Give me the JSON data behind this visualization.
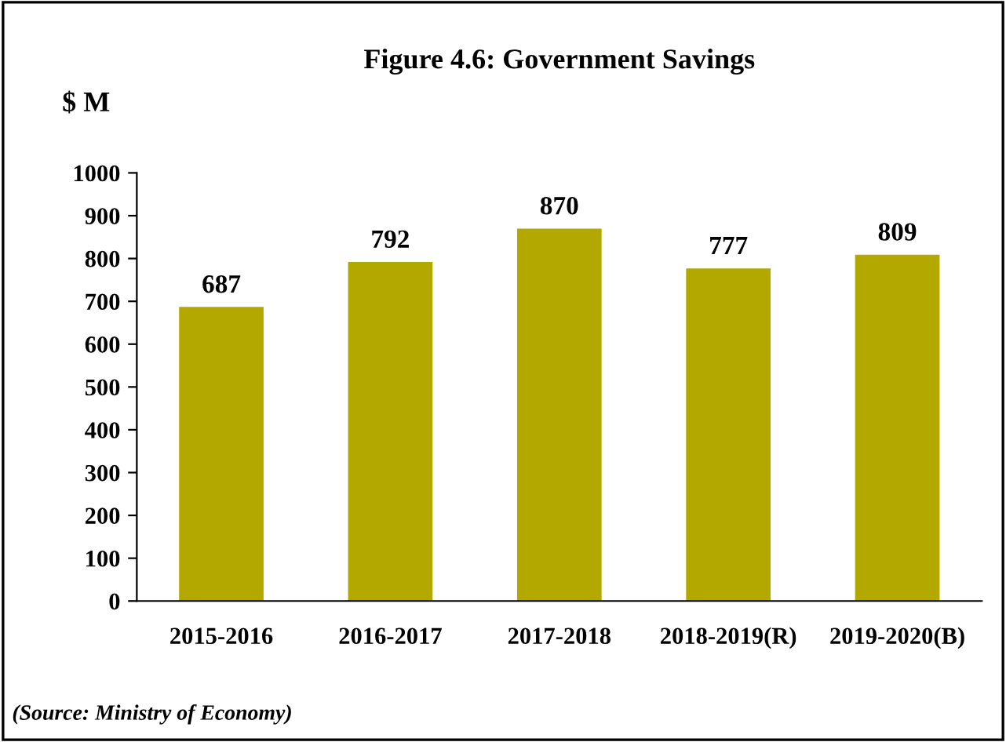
{
  "chart_data": {
    "type": "bar",
    "title": "Figure 4.6: Government Savings",
    "ylabel": "$ M",
    "categories": [
      "2015-2016",
      "2016-2017",
      "2017-2018",
      "2018-2019(R)",
      "2019-2020(B)"
    ],
    "values": [
      687,
      792,
      870,
      777,
      809
    ],
    "color": "#b3a800",
    "ylim": [
      0,
      1000
    ],
    "yticks": [
      0,
      100,
      200,
      300,
      400,
      500,
      600,
      700,
      800,
      900,
      1000
    ],
    "data_labels": true,
    "grid": false,
    "legend": false,
    "annotations": [
      "(Source: Ministry of Economy)"
    ]
  }
}
